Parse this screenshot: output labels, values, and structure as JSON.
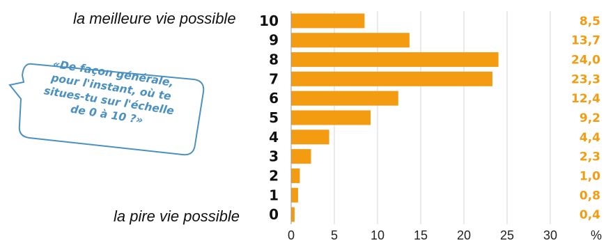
{
  "labels": {
    "top": "la meilleure vie possible",
    "bottom": "la pire vie possible"
  },
  "question": {
    "lines": [
      "«De façon générale,",
      "pour l'instant, où te",
      "situes-tu sur l'échelle",
      "de 0 à 10 ?»"
    ],
    "color": "#4a90c2"
  },
  "chart_data": {
    "type": "bar",
    "orientation": "horizontal",
    "categories": [
      "10",
      "9",
      "8",
      "7",
      "6",
      "5",
      "4",
      "3",
      "2",
      "1",
      "0"
    ],
    "values": [
      8.5,
      13.7,
      24.0,
      23.3,
      12.4,
      9.2,
      4.4,
      2.3,
      1.0,
      0.8,
      0.4
    ],
    "value_labels": [
      "8,5",
      "13,7",
      "24,0",
      "23,3",
      "12,4",
      "9,2",
      "4,4",
      "2,3",
      "1,0",
      "0,8",
      "0,4"
    ],
    "x_ticks": [
      "0",
      "5",
      "10",
      "15",
      "20",
      "25",
      "30"
    ],
    "xlim": [
      0,
      30
    ],
    "unit": "%",
    "grid": true,
    "bar_color": "#f39c12",
    "label_color": "#f39c12"
  }
}
